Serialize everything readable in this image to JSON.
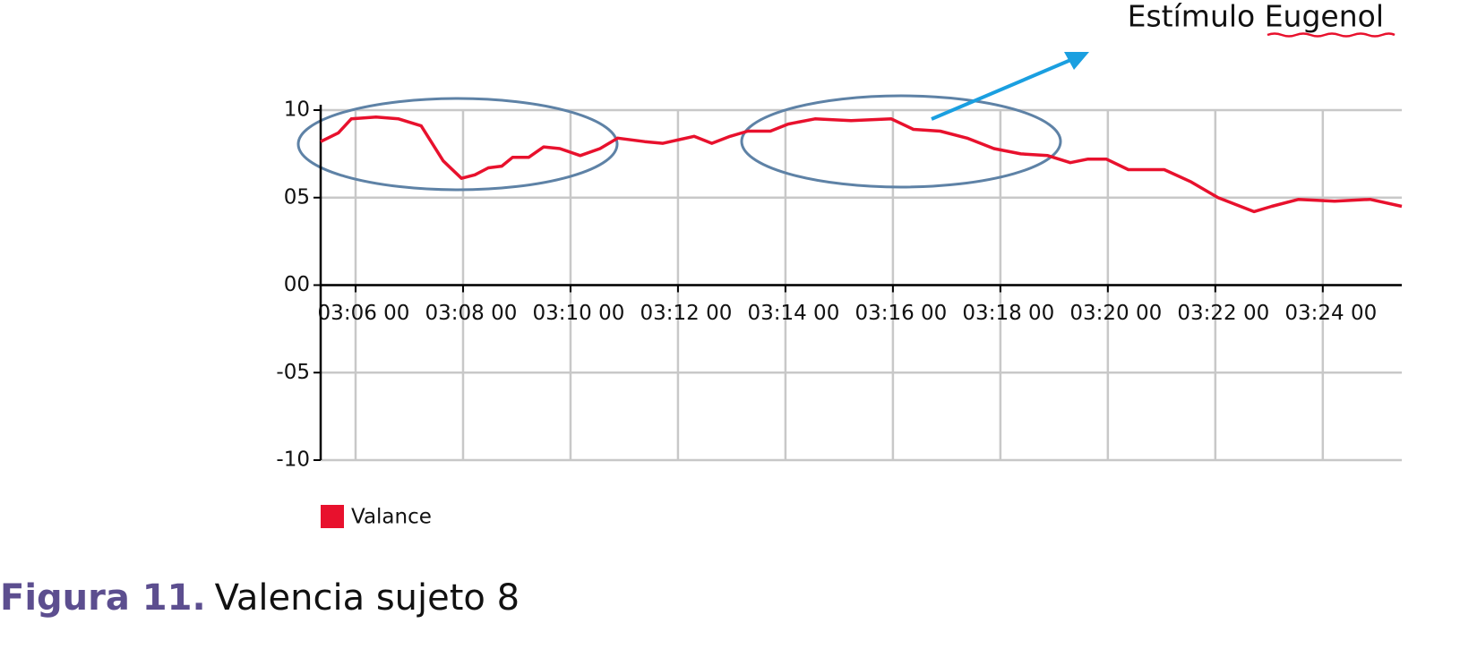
{
  "chart_data": {
    "type": "line",
    "annotation": "Estímulo Eugenol",
    "caption_label": "Figura 11.",
    "caption_text": "Valencia sujeto 8",
    "xlim": [
      5.35,
      25.47
    ],
    "xticks": [
      {
        "value": 6,
        "label": "03:06 00"
      },
      {
        "value": 8,
        "label": "03:08 00"
      },
      {
        "value": 10,
        "label": "03:10 00"
      },
      {
        "value": 12,
        "label": "03:12 00"
      },
      {
        "value": 14,
        "label": "03:14 00"
      },
      {
        "value": 16,
        "label": "03:16 00"
      },
      {
        "value": 18,
        "label": "03:18 00"
      },
      {
        "value": 20,
        "label": "03:20 00"
      },
      {
        "value": 22,
        "label": "03:22 00"
      },
      {
        "value": 24,
        "label": "03:24 00"
      }
    ],
    "ylim": [
      -10,
      10
    ],
    "yticks": [
      10,
      {
        "value": 5,
        "label": "05"
      },
      {
        "value": 0,
        "label": "00"
      },
      {
        "value": -5,
        "label": "-05"
      },
      -10
    ],
    "grid": true,
    "x": [
      5.35,
      5.68,
      5.92,
      6.38,
      6.8,
      7.22,
      7.63,
      7.97,
      8.22,
      8.47,
      8.72,
      8.92,
      9.22,
      9.5,
      9.8,
      10.18,
      10.55,
      10.88,
      11.38,
      11.72,
      12.3,
      12.63,
      12.97,
      13.3,
      13.72,
      14.05,
      14.55,
      15.22,
      15.97,
      16.38,
      16.88,
      17.38,
      17.88,
      18.38,
      18.88,
      19.3,
      19.63,
      19.97,
      20.38,
      21.05,
      21.55,
      22.05,
      22.72,
      23.05,
      23.55,
      24.22,
      24.88,
      25.47
    ],
    "series": [
      {
        "name": "Valance",
        "color": "#e8112d",
        "values": [
          8.2,
          8.7,
          9.5,
          9.6,
          9.5,
          9.1,
          7.1,
          6.1,
          6.3,
          6.7,
          6.8,
          7.3,
          7.3,
          7.9,
          7.8,
          7.4,
          7.8,
          8.4,
          8.2,
          8.1,
          8.5,
          8.1,
          8.5,
          8.8,
          8.8,
          9.2,
          9.5,
          9.4,
          9.5,
          8.9,
          8.8,
          8.4,
          7.8,
          7.5,
          7.4,
          7.0,
          7.2,
          7.2,
          6.6,
          6.6,
          5.9,
          5.0,
          4.2,
          4.5,
          4.9,
          4.8,
          4.9,
          4.5
        ]
      }
    ]
  }
}
